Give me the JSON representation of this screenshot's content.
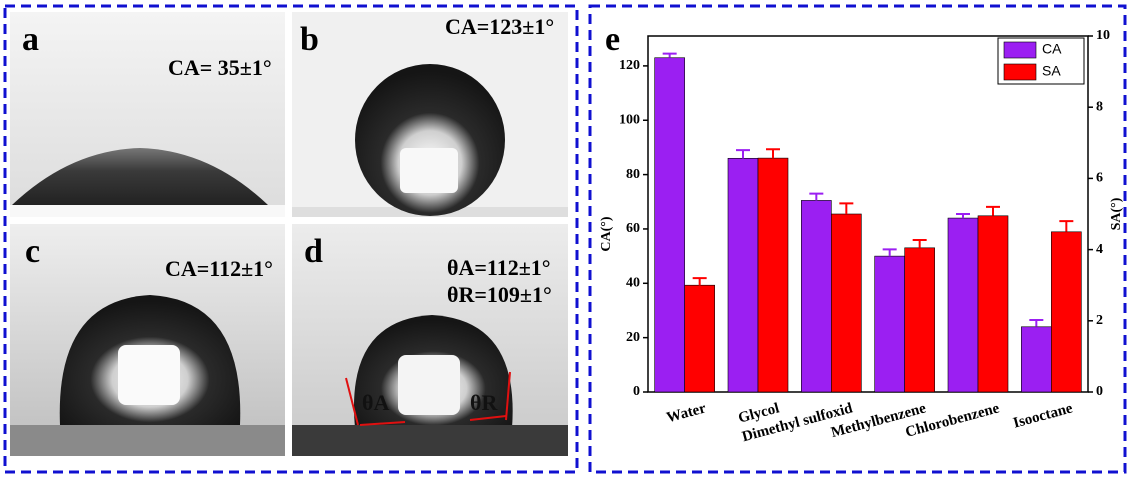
{
  "panels": [
    {
      "label": "a",
      "text": "CA= 35±1°"
    },
    {
      "label": "b",
      "text": "CA=123±1°"
    },
    {
      "label": "c",
      "text": "CA=112±1°"
    },
    {
      "label": "d",
      "text": "θA=112±1°",
      "text2": "θR=109±1°",
      "angle_a": "θA",
      "angle_r": "θR"
    }
  ],
  "chart_data": {
    "type": "bar",
    "label": "e",
    "categories": [
      "Water",
      "Glycol",
      "Dimethyl sulfoxid",
      "Methylbenzene",
      "Chlorobenzene",
      "Isooctane"
    ],
    "series": [
      {
        "name": "CA",
        "color": "#9b1ff2",
        "values": [
          123,
          86,
          70.5,
          50,
          64,
          24
        ],
        "errors": [
          1.5,
          3,
          2.5,
          2.5,
          1.5,
          2.5
        ]
      },
      {
        "name": "SA",
        "color": "#ff0000",
        "axis": "y2",
        "values": [
          3.0,
          6.57,
          5.0,
          4.05,
          4.95,
          4.5
        ],
        "errors": [
          0.2,
          0.25,
          0.3,
          0.22,
          0.25,
          0.3
        ]
      }
    ],
    "y_label": "CA(°)",
    "y2_label": "SA(°)",
    "ylim": [
      0,
      131
    ],
    "yticks": [
      0,
      20,
      40,
      60,
      80,
      100,
      120
    ],
    "y2lim": [
      0,
      10
    ],
    "y2ticks": [
      0,
      2,
      4,
      6,
      8,
      10
    ],
    "legend": "top-right"
  }
}
